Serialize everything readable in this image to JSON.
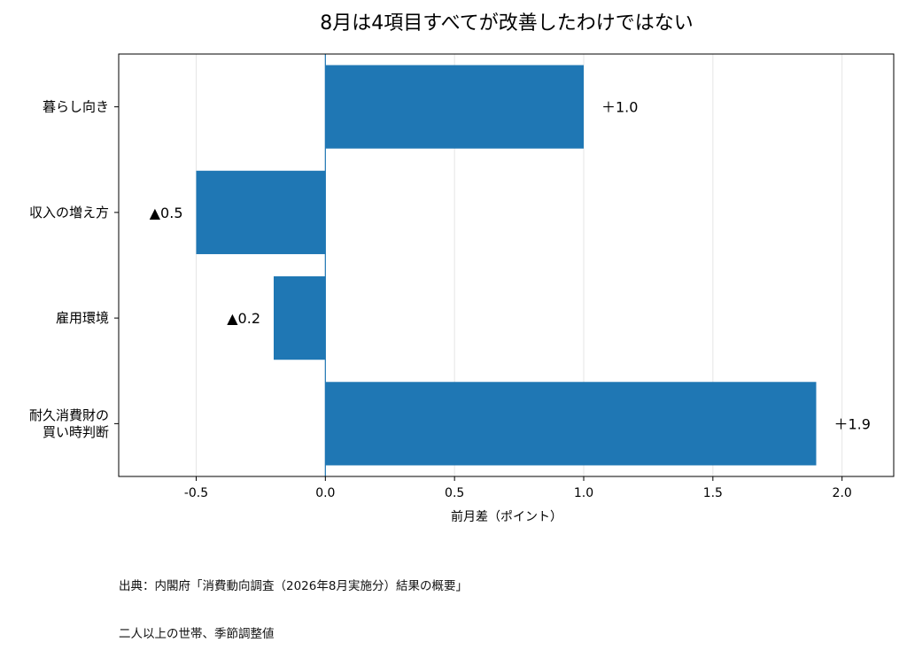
{
  "chart_data": {
    "type": "bar",
    "orientation": "horizontal",
    "title": "8月は4項目すべてが改善したわけではない",
    "categories": [
      "暮らし向き",
      "収入の増え方",
      "雇用環境",
      "耐久消費財の\n買い時判断"
    ],
    "values": [
      1.0,
      -0.5,
      -0.2,
      1.9
    ],
    "data_labels": [
      "＋1.0",
      "▲0.5",
      "▲0.2",
      "＋1.9"
    ],
    "xlabel": "前月差（ポイント）",
    "ylabel": "",
    "xlim": [
      -0.8,
      2.2
    ],
    "xticks": [
      -0.5,
      0.0,
      0.5,
      1.0,
      1.5,
      2.0
    ],
    "xtick_labels": [
      "-0.5",
      "0.0",
      "0.5",
      "1.0",
      "1.5",
      "2.0"
    ],
    "bar_color": "#1f77b4",
    "grid": "x",
    "zero_line": true
  },
  "footer": {
    "line1": "出典：内閣府「消費動向調査（2026年8月実施分）結果の概要」",
    "line2": "二人以上の世帯、季節調整値"
  }
}
